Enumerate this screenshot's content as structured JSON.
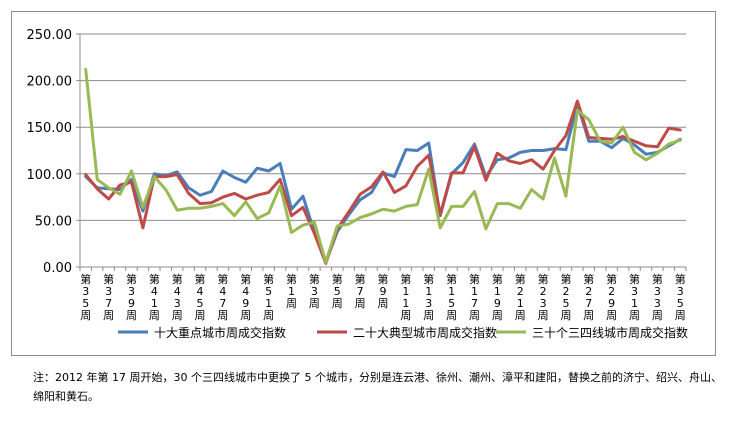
{
  "chart_data": {
    "type": "line",
    "title": "",
    "xlabel": "",
    "ylabel": "",
    "ylim": [
      0,
      250
    ],
    "yticks": [
      "0.00",
      "50.00",
      "100.00",
      "150.00",
      "200.00",
      "250.00"
    ],
    "grid": true,
    "legend_position": "bottom",
    "categories": [
      "第35周",
      "第36周",
      "第37周",
      "第38周",
      "第39周",
      "第40周",
      "第41周",
      "第42周",
      "第43周",
      "第44周",
      "第45周",
      "第46周",
      "第47周",
      "第48周",
      "第49周",
      "第50周",
      "第51周",
      "第52周",
      "第1周",
      "第2周",
      "第3周",
      "第4周",
      "第5周",
      "第6周",
      "第7周",
      "第8周",
      "第9周",
      "第10周",
      "第11周",
      "第12周",
      "第13周",
      "第14周",
      "第15周",
      "第16周",
      "第17周",
      "第18周",
      "第19周",
      "第20周",
      "第21周",
      "第22周",
      "第23周",
      "第24周",
      "第25周",
      "第26周",
      "第27周",
      "第28周",
      "第29周",
      "第30周",
      "第31周",
      "第32周",
      "第33周",
      "第34周",
      "第35周"
    ],
    "tick_labels": [
      "第35周",
      "第37周",
      "第39周",
      "第41周",
      "第43周",
      "第45周",
      "第47周",
      "第49周",
      "第51周",
      "第1周",
      "第3周",
      "第5周",
      "第7周",
      "第9周",
      "第11周",
      "第13周",
      "第15周",
      "第17周",
      "第19周",
      "第21周",
      "第23周",
      "第25周",
      "第27周",
      "第29周",
      "第31周",
      "第33周",
      "第35周"
    ],
    "series": [
      {
        "name": "十大重点城市周成交指数",
        "color": "#4a7ebb",
        "values": [
          97,
          85,
          84,
          83,
          94,
          60,
          100,
          98,
          102,
          85,
          77,
          81,
          103,
          96,
          91,
          106,
          103,
          111,
          62,
          76,
          37,
          5,
          38,
          56,
          72,
          80,
          101,
          97,
          126,
          125,
          133,
          55,
          100,
          112,
          132,
          97,
          115,
          117,
          123,
          125,
          125,
          127,
          126,
          175,
          135,
          135,
          128,
          138,
          131,
          121,
          123,
          130,
          137
        ]
      },
      {
        "name": "二十大典型城市周成交指数",
        "color": "#be4b48",
        "values": [
          99,
          84,
          73,
          88,
          91,
          42,
          97,
          97,
          99,
          79,
          68,
          69,
          75,
          79,
          73,
          77,
          80,
          94,
          55,
          64,
          36,
          4,
          41,
          59,
          78,
          86,
          102,
          80,
          87,
          108,
          120,
          56,
          101,
          101,
          129,
          93,
          122,
          114,
          111,
          115,
          105,
          125,
          141,
          178,
          139,
          138,
          137,
          140,
          135,
          130,
          129,
          149,
          147
        ]
      },
      {
        "name": "三十个三四线城市周成交指数",
        "color": "#98b954",
        "values": [
          212,
          94,
          85,
          78,
          103,
          64,
          97,
          83,
          61,
          63,
          63,
          65,
          68,
          55,
          70,
          52,
          58,
          87,
          37,
          45,
          48,
          5,
          44,
          46,
          53,
          57,
          62,
          60,
          65,
          67,
          105,
          42,
          65,
          65,
          81,
          41,
          68,
          68,
          63,
          83,
          73,
          117,
          76,
          168,
          158,
          135,
          133,
          150,
          123,
          115,
          122,
          132,
          136
        ]
      }
    ]
  },
  "footnote": "注：2012 年第 17 周开始，30 个三四线城市中更换了 5 个城市，分别是连云港、徐州、潮州、漳平和建阳，替换之前的济宁、绍兴、舟山、绵阳和黄石。"
}
